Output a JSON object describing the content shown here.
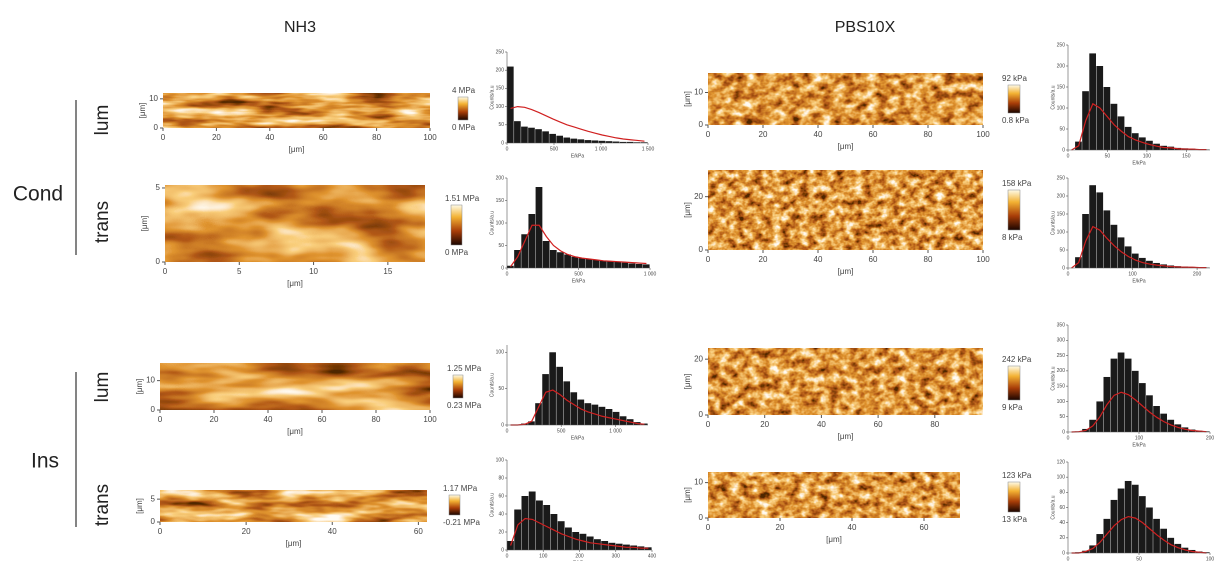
{
  "columns": [
    {
      "title": "NH3"
    },
    {
      "title": "PBS10X"
    }
  ],
  "groups": [
    {
      "label": "Cond",
      "rows": [
        "lum",
        "trans"
      ]
    },
    {
      "label": "Ins",
      "rows": [
        "lum",
        "trans"
      ]
    }
  ],
  "panels": [
    {
      "map": {
        "x_label": "[μm]",
        "y_label": "[μm]",
        "xlim": [
          0,
          100
        ],
        "ylim": [
          0,
          12
        ],
        "xticks": [
          0,
          20,
          40,
          60,
          80,
          100
        ],
        "yticks": [
          0,
          10
        ]
      },
      "colorbar": {
        "max": "4 MPa",
        "min": "0 MPa"
      },
      "histogram": {
        "x_label": "E/kPa",
        "y_label": "Counts/a.u",
        "xlim": [
          0,
          1500
        ],
        "ylim": [
          0,
          250
        ],
        "xticks": [
          0,
          500,
          {
            "value": 1000,
            "label": "1 000"
          },
          {
            "value": 1500,
            "label": "1 500"
          }
        ],
        "yticks": [
          0,
          50,
          100,
          150,
          200,
          250
        ],
        "bins": [
          0,
          75,
          150,
          225,
          300,
          375,
          450,
          525,
          600,
          675,
          750,
          825,
          900,
          975,
          1050,
          1125,
          1200,
          1275,
          1350,
          1425,
          1500
        ],
        "counts": [
          210,
          60,
          45,
          42,
          38,
          32,
          25,
          20,
          15,
          12,
          10,
          8,
          7,
          6,
          5,
          4,
          3,
          3,
          2,
          2
        ],
        "fit": [
          95,
          100,
          98,
          92,
          84,
          75,
          66,
          58,
          50,
          44,
          38,
          32,
          27,
          22,
          18,
          14,
          11,
          9,
          7,
          5
        ]
      }
    },
    {
      "map": {
        "x_label": "[μm]",
        "y_label": "[μm]",
        "xlim": [
          0,
          17.5
        ],
        "ylim": [
          0,
          5.2
        ],
        "xticks": [
          0,
          5,
          10,
          15
        ],
        "yticks": [
          0,
          5
        ]
      },
      "colorbar": {
        "max": "1.51 MPa",
        "min": "0 MPa"
      },
      "histogram": {
        "x_label": "E/kPa",
        "y_label": "Counts/a.u",
        "xlim": [
          0,
          1000
        ],
        "ylim": [
          0,
          200
        ],
        "xticks": [
          0,
          500,
          {
            "value": 1000,
            "label": "1 000"
          }
        ],
        "yticks": [
          0,
          50,
          100,
          150,
          200
        ],
        "bins": [
          0,
          50,
          100,
          150,
          200,
          250,
          300,
          350,
          400,
          450,
          500,
          550,
          600,
          650,
          700,
          750,
          800,
          850,
          900,
          950,
          1000
        ],
        "counts": [
          5,
          40,
          75,
          120,
          180,
          60,
          40,
          35,
          30,
          25,
          22,
          20,
          18,
          16,
          15,
          14,
          12,
          10,
          9,
          8
        ],
        "fit": [
          3,
          25,
          60,
          95,
          95,
          70,
          50,
          38,
          30,
          25,
          22,
          20,
          18,
          16,
          15,
          14,
          13,
          12,
          11,
          10
        ]
      }
    },
    {
      "map": {
        "x_label": "[μm]",
        "y_label": "[μm]",
        "xlim": [
          0,
          100
        ],
        "ylim": [
          0,
          16
        ],
        "xticks": [
          0,
          20,
          40,
          60,
          80,
          100
        ],
        "yticks": [
          0,
          10
        ]
      },
      "colorbar": {
        "max": "1.25 MPa",
        "min": "0.23 MPa"
      },
      "histogram": {
        "x_label": "E/kPa",
        "y_label": "Counts/a.u",
        "xlim": [
          0,
          1300
        ],
        "ylim": [
          0,
          110
        ],
        "xticks": [
          0,
          500,
          {
            "value": 1000,
            "label": "1 000"
          }
        ],
        "yticks": [
          0,
          50,
          100
        ],
        "bins": [
          0,
          65,
          130,
          195,
          260,
          325,
          390,
          455,
          520,
          585,
          650,
          715,
          780,
          845,
          910,
          975,
          1040,
          1105,
          1170,
          1235,
          1300
        ],
        "counts": [
          0,
          0,
          2,
          5,
          30,
          70,
          100,
          80,
          60,
          45,
          35,
          30,
          28,
          25,
          22,
          18,
          12,
          8,
          4,
          2
        ],
        "fit": [
          0,
          0,
          1,
          5,
          25,
          45,
          48,
          42,
          34,
          28,
          22,
          18,
          15,
          12,
          10,
          8,
          6,
          4,
          2,
          1
        ]
      }
    },
    {
      "map": {
        "x_label": "[μm]",
        "y_label": "[μm]",
        "xlim": [
          0,
          62
        ],
        "ylim": [
          0,
          7
        ],
        "xticks": [
          0,
          20,
          40,
          60
        ],
        "yticks": [
          0,
          5
        ]
      },
      "colorbar": {
        "max": "1.17 MPa",
        "min": "-0.21 MPa"
      },
      "histogram": {
        "x_label": "E/kPa",
        "y_label": "Counts/a.u",
        "xlim": [
          0,
          400
        ],
        "ylim": [
          0,
          100
        ],
        "xticks": [
          0,
          100,
          200,
          300,
          400
        ],
        "yticks": [
          0,
          20,
          40,
          60,
          80,
          100
        ],
        "bins": [
          0,
          20,
          40,
          60,
          80,
          100,
          120,
          140,
          160,
          180,
          200,
          220,
          240,
          260,
          280,
          300,
          320,
          340,
          360,
          380,
          400
        ],
        "counts": [
          10,
          45,
          60,
          65,
          55,
          50,
          40,
          32,
          25,
          20,
          18,
          15,
          12,
          10,
          8,
          7,
          6,
          5,
          4,
          3
        ],
        "fit": [
          5,
          28,
          35,
          34,
          30,
          26,
          22,
          18,
          15,
          12,
          10,
          8,
          7,
          6,
          5,
          4,
          3,
          3,
          2,
          2
        ]
      }
    },
    {
      "map": {
        "x_label": "[μm]",
        "y_label": "[μm]",
        "xlim": [
          0,
          100
        ],
        "ylim": [
          0,
          16
        ],
        "xticks": [
          0,
          20,
          40,
          60,
          80,
          100
        ],
        "yticks": [
          0,
          10
        ]
      },
      "colorbar": {
        "max": "92 kPa",
        "min": "0.8 kPa"
      },
      "histogram": {
        "x_label": "E/kPa",
        "y_label": "Counts/a.u",
        "xlim": [
          0,
          180
        ],
        "ylim": [
          0,
          250
        ],
        "xticks": [
          0,
          50,
          100,
          150
        ],
        "yticks": [
          0,
          50,
          100,
          150,
          200,
          250
        ],
        "bins": [
          0,
          9,
          18,
          27,
          36,
          45,
          54,
          63,
          72,
          81,
          90,
          99,
          108,
          117,
          126,
          135,
          144,
          153,
          162,
          171,
          180
        ],
        "counts": [
          0,
          20,
          140,
          230,
          200,
          150,
          110,
          80,
          55,
          40,
          30,
          22,
          15,
          10,
          8,
          5,
          4,
          3,
          2,
          1
        ],
        "fit": [
          0,
          10,
          70,
          110,
          100,
          80,
          60,
          45,
          32,
          24,
          18,
          13,
          9,
          6,
          5,
          3,
          2,
          2,
          1,
          1
        ]
      }
    },
    {
      "map": {
        "x_label": "[μm]",
        "y_label": "[μm]",
        "xlim": [
          0,
          100
        ],
        "ylim": [
          0,
          30
        ],
        "xticks": [
          0,
          20,
          40,
          60,
          80,
          100
        ],
        "yticks": [
          0,
          20
        ]
      },
      "colorbar": {
        "max": "158 kPa",
        "min": "8 kPa"
      },
      "histogram": {
        "x_label": "E/kPa",
        "y_label": "Counts/a.u",
        "xlim": [
          0,
          220
        ],
        "ylim": [
          0,
          250
        ],
        "xticks": [
          0,
          100,
          200
        ],
        "yticks": [
          0,
          50,
          100,
          150,
          200,
          250
        ],
        "bins": [
          0,
          11,
          22,
          33,
          44,
          55,
          66,
          77,
          88,
          99,
          110,
          121,
          132,
          143,
          154,
          165,
          176,
          187,
          198,
          209,
          220
        ],
        "counts": [
          0,
          30,
          150,
          230,
          210,
          160,
          120,
          85,
          60,
          40,
          28,
          20,
          14,
          10,
          7,
          5,
          4,
          3,
          2,
          1
        ],
        "fit": [
          0,
          15,
          75,
          115,
          105,
          82,
          62,
          45,
          32,
          22,
          15,
          11,
          8,
          6,
          4,
          3,
          2,
          2,
          1,
          1
        ]
      }
    },
    {
      "map": {
        "x_label": "[μm]",
        "y_label": "[μm]",
        "xlim": [
          0,
          97
        ],
        "ylim": [
          0,
          24
        ],
        "xticks": [
          0,
          20,
          40,
          60,
          80
        ],
        "yticks": [
          0,
          20
        ]
      },
      "colorbar": {
        "max": "242 kPa",
        "min": "9 kPa"
      },
      "histogram": {
        "x_label": "E/kPa",
        "y_label": "Counts/a.u",
        "xlim": [
          0,
          200
        ],
        "ylim": [
          0,
          350
        ],
        "xticks": [
          0,
          100,
          200
        ],
        "yticks": [
          0,
          50,
          100,
          150,
          200,
          250,
          300,
          350
        ],
        "bins": [
          0,
          10,
          20,
          30,
          40,
          50,
          60,
          70,
          80,
          90,
          100,
          110,
          120,
          130,
          140,
          150,
          160,
          170,
          180,
          190,
          200
        ],
        "counts": [
          0,
          2,
          10,
          40,
          100,
          180,
          240,
          260,
          240,
          200,
          160,
          120,
          85,
          60,
          40,
          25,
          15,
          8,
          4,
          2
        ],
        "fit": [
          0,
          1,
          5,
          20,
          50,
          90,
          120,
          130,
          122,
          105,
          85,
          65,
          48,
          34,
          23,
          15,
          9,
          5,
          3,
          1
        ]
      }
    },
    {
      "map": {
        "x_label": "[μm]",
        "y_label": "[μm]",
        "xlim": [
          0,
          70
        ],
        "ylim": [
          0,
          13
        ],
        "xticks": [
          0,
          20,
          40,
          60
        ],
        "yticks": [
          0,
          10
        ]
      },
      "colorbar": {
        "max": "123 kPa",
        "min": "13 kPa"
      },
      "histogram": {
        "x_label": "E/kPa",
        "y_label": "Counts/a.u",
        "xlim": [
          0,
          100
        ],
        "ylim": [
          0,
          120
        ],
        "xticks": [
          0,
          50,
          100
        ],
        "yticks": [
          0,
          20,
          40,
          60,
          80,
          100,
          120
        ],
        "bins": [
          0,
          5,
          10,
          15,
          20,
          25,
          30,
          35,
          40,
          45,
          50,
          55,
          60,
          65,
          70,
          75,
          80,
          85,
          90,
          95,
          100
        ],
        "counts": [
          0,
          1,
          3,
          10,
          25,
          45,
          70,
          85,
          95,
          90,
          75,
          60,
          45,
          32,
          20,
          12,
          7,
          4,
          2,
          1
        ],
        "fit": [
          0,
          0,
          2,
          6,
          14,
          25,
          36,
          44,
          48,
          46,
          40,
          32,
          24,
          17,
          11,
          7,
          4,
          2,
          1,
          0
        ]
      }
    }
  ]
}
